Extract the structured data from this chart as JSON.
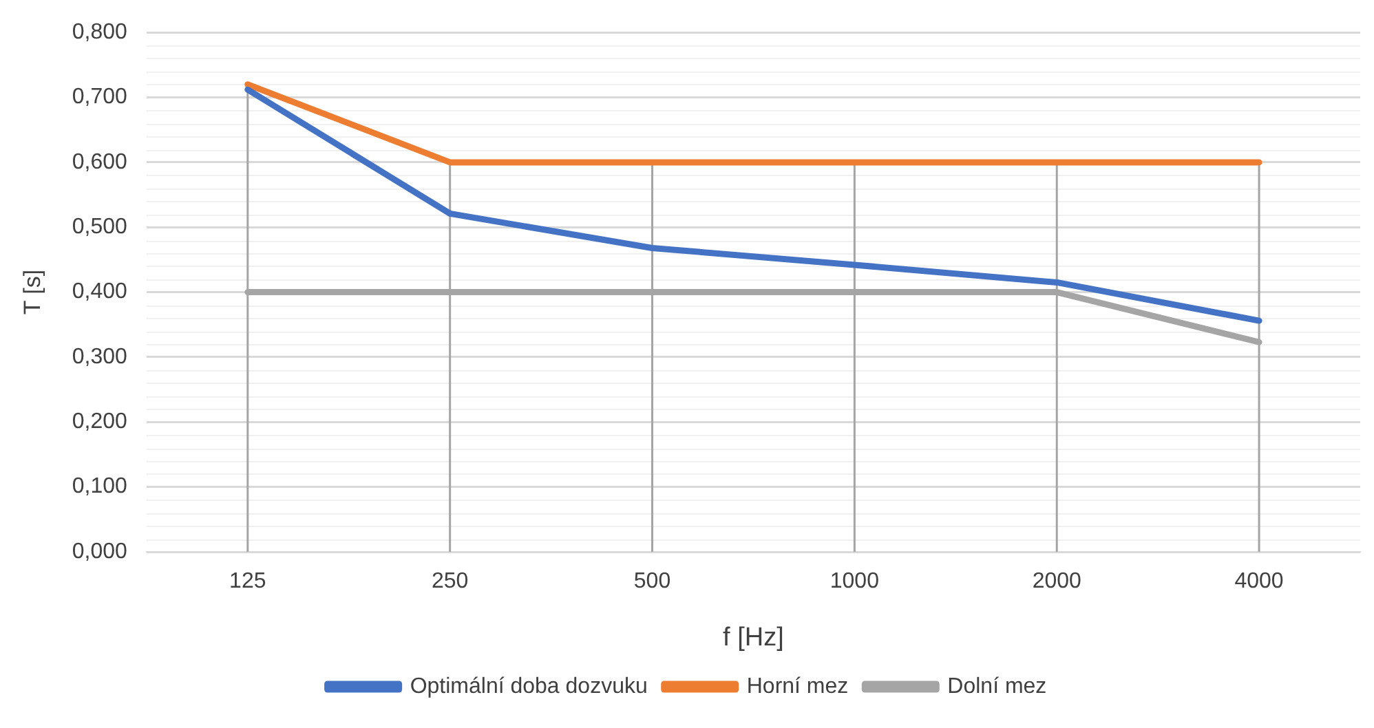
{
  "chart_data": {
    "type": "line",
    "xlabel": "f [Hz]",
    "ylabel": "T [s]",
    "categories": [
      "125",
      "250",
      "500",
      "1000",
      "2000",
      "4000"
    ],
    "series": [
      {
        "name": "Optimální doba dozvuku",
        "color": "#4472c4",
        "values": [
          0.712,
          0.521,
          0.468,
          0.442,
          0.415,
          0.356
        ]
      },
      {
        "name": "Horní mez",
        "color": "#ed7d31",
        "values": [
          0.72,
          0.6,
          0.6,
          0.6,
          0.6,
          0.6
        ]
      },
      {
        "name": "Dolní mez",
        "color": "#a5a5a5",
        "values": [
          0.4,
          0.4,
          0.4,
          0.4,
          0.4,
          0.323
        ]
      }
    ],
    "ylim": [
      0,
      0.8
    ],
    "yticks": [
      {
        "value": 0,
        "label": "0,000"
      },
      {
        "value": 0.1,
        "label": "0,100"
      },
      {
        "value": 0.2,
        "label": "0,200"
      },
      {
        "value": 0.3,
        "label": "0,300"
      },
      {
        "value": 0.4,
        "label": "0,400"
      },
      {
        "value": 0.5,
        "label": "0,500"
      },
      {
        "value": 0.6,
        "label": "0,600"
      },
      {
        "value": 0.7,
        "label": "0,700"
      },
      {
        "value": 0.8,
        "label": "0,800"
      }
    ],
    "grid": true,
    "legend": "bottom",
    "marker": "none",
    "line_style": "solid"
  }
}
